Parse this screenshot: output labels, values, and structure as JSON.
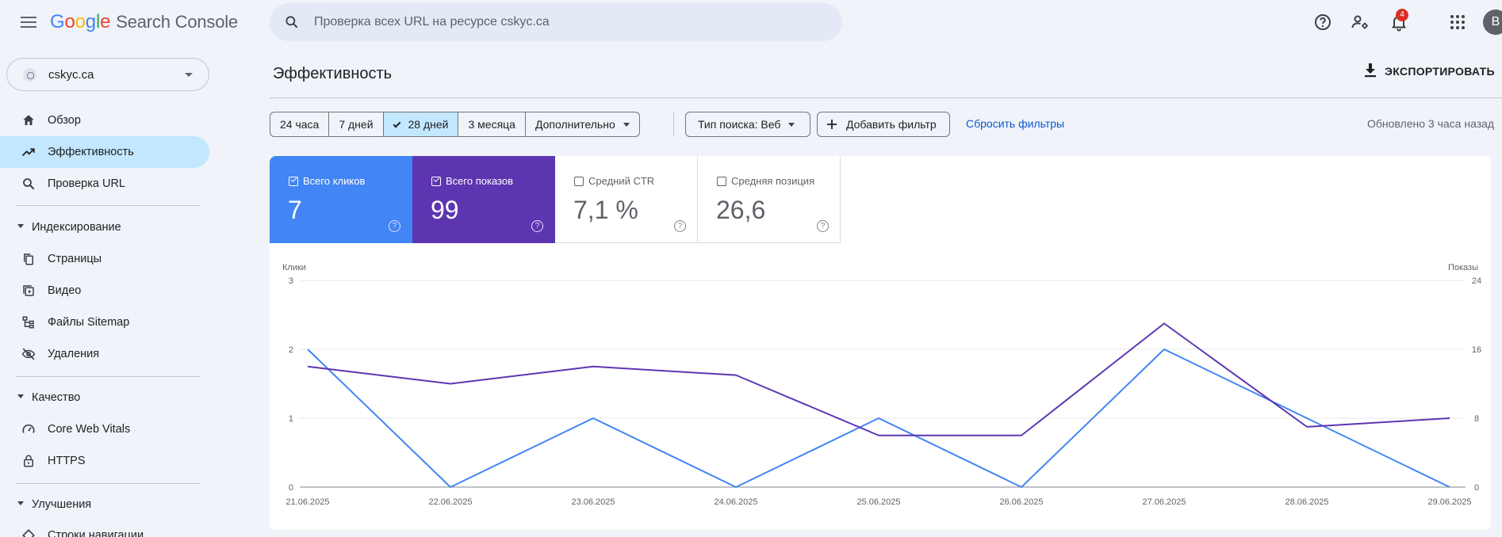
{
  "app": {
    "logo_letters": [
      "G",
      "o",
      "o",
      "g",
      "l",
      "e"
    ],
    "product": "Search Console"
  },
  "search": {
    "placeholder": "Проверка всех URL на ресурсе cskyc.ca"
  },
  "topbar": {
    "notifications_count": "4",
    "avatar_letter": "В"
  },
  "property": {
    "name": "cskyc.ca"
  },
  "sidebar": {
    "items": [
      {
        "label": "Обзор",
        "icon": "home-icon"
      },
      {
        "label": "Эффективность",
        "icon": "trending-up-icon",
        "active": true
      },
      {
        "label": "Проверка URL",
        "icon": "search-icon"
      }
    ],
    "sections": [
      {
        "title": "Индексирование",
        "items": [
          {
            "label": "Страницы",
            "icon": "pages-icon"
          },
          {
            "label": "Видео",
            "icon": "video-icon"
          },
          {
            "label": "Файлы Sitemap",
            "icon": "sitemap-icon"
          },
          {
            "label": "Удаления",
            "icon": "removals-icon"
          }
        ]
      },
      {
        "title": "Качество",
        "items": [
          {
            "label": "Core Web Vitals",
            "icon": "speed-icon"
          },
          {
            "label": "HTTPS",
            "icon": "lock-icon"
          }
        ]
      },
      {
        "title": "Улучшения",
        "items": [
          {
            "label": "Строки навигации",
            "icon": "diamond-icon"
          }
        ]
      }
    ]
  },
  "header": {
    "title": "Эффективность",
    "export_label": "ЭКСПОРТИРОВАТЬ"
  },
  "filters": {
    "ranges": [
      "24 часа",
      "7 дней",
      "28 дней",
      "3 месяца"
    ],
    "selected_range": "28 дней",
    "more_label": "Дополнительно",
    "search_type": "Тип поиска: Веб",
    "add_filter": "Добавить фильтр",
    "reset": "Сбросить фильтры",
    "updated": "Обновлено 3 часа назад"
  },
  "metrics": [
    {
      "label": "Всего кликов",
      "value": "7",
      "checked": true,
      "color": "#4285f4"
    },
    {
      "label": "Всего показов",
      "value": "99",
      "checked": true,
      "color": "#5e35b1"
    },
    {
      "label": "Средний CTR",
      "value": "7,1 %",
      "checked": false
    },
    {
      "label": "Средняя позиция",
      "value": "26,6",
      "checked": false
    }
  ],
  "chart_data": {
    "type": "line",
    "x": [
      "21.06.2025",
      "22.06.2025",
      "23.06.2025",
      "24.06.2025",
      "25.06.2025",
      "26.06.2025",
      "27.06.2025",
      "28.06.2025",
      "29.06.2025"
    ],
    "left_axis": {
      "title": "Клики",
      "ticks": [
        "0",
        "1",
        "2",
        "3"
      ],
      "range": [
        0,
        3
      ]
    },
    "right_axis": {
      "title": "Показы",
      "ticks": [
        "0",
        "8",
        "16",
        "24"
      ],
      "range": [
        0,
        24
      ]
    },
    "series": [
      {
        "name": "Клики",
        "axis": "left",
        "color": "#4285f4",
        "values": [
          2,
          0,
          1,
          0,
          1,
          0,
          2,
          1,
          0
        ]
      },
      {
        "name": "Показы",
        "axis": "right",
        "color": "#5e35b1",
        "values": [
          14,
          12,
          14,
          13,
          6,
          6,
          19,
          7,
          8
        ]
      }
    ],
    "grid": true
  }
}
